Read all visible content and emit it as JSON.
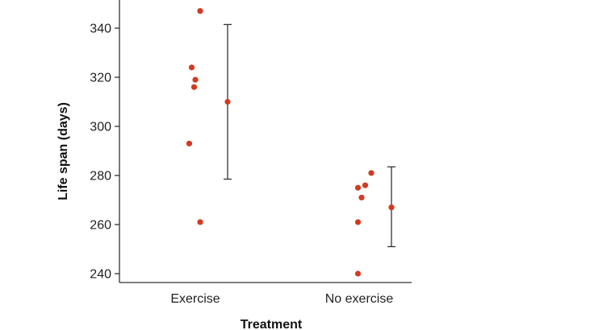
{
  "chart_data": {
    "type": "scatter",
    "title": "",
    "xlabel": "Treatment",
    "ylabel": "Life span (days)",
    "categories": [
      "Exercise",
      "No exercise"
    ],
    "ylim": [
      236,
      350
    ],
    "yticks": [
      240,
      260,
      280,
      300,
      320,
      340
    ],
    "series": [
      {
        "name": "Exercise",
        "points": [
          {
            "jitter": 0.2,
            "value": 347
          },
          {
            "jitter": -0.15,
            "value": 324
          },
          {
            "jitter": 0.0,
            "value": 319
          },
          {
            "jitter": -0.05,
            "value": 316
          },
          {
            "jitter": -0.25,
            "value": 293
          },
          {
            "jitter": 0.2,
            "value": 261
          }
        ],
        "mean": 310,
        "error_low": 278.5,
        "error_high": 341.5
      },
      {
        "name": "No exercise",
        "points": [
          {
            "jitter": 0.5,
            "value": 281
          },
          {
            "jitter": 0.25,
            "value": 276
          },
          {
            "jitter": -0.05,
            "value": 275
          },
          {
            "jitter": 0.1,
            "value": 271
          },
          {
            "jitter": -0.05,
            "value": 261
          },
          {
            "jitter": -0.05,
            "value": 240
          }
        ],
        "mean": 267,
        "error_low": 251,
        "error_high": 283.5
      }
    ],
    "colors": {
      "point": "#d23a21",
      "axis": "#333333",
      "errorbar": "#333333"
    }
  }
}
